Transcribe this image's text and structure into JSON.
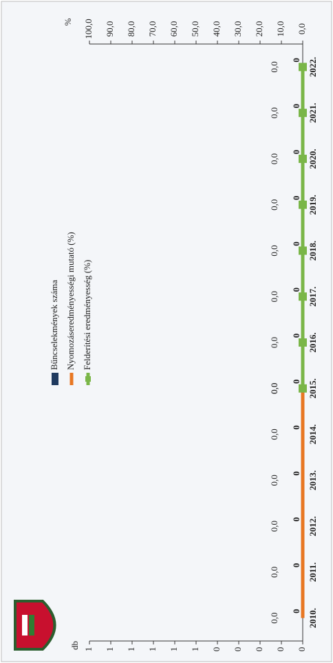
{
  "chart_data": {
    "type": "bar",
    "categories": [
      "2010.",
      "2011.",
      "2012.",
      "2013.",
      "2014.",
      "2015.",
      "2016.",
      "2017.",
      "2018.",
      "2019.",
      "2020.",
      "2021.",
      "2022."
    ],
    "series": [
      {
        "name": "Bűncselekmények száma",
        "type": "bar",
        "color": "#1f3a5f",
        "values": [
          0,
          0,
          0,
          0,
          0,
          0,
          0,
          0,
          0,
          0,
          0,
          0,
          0
        ]
      },
      {
        "name": "Nyomozáseredményességi mutató (%)",
        "type": "line",
        "axis": "y2",
        "color": "#e87722",
        "values": [
          0,
          0,
          0,
          0,
          0,
          0,
          null,
          null,
          null,
          null,
          null,
          null,
          null
        ],
        "value_labels": [
          "0,0",
          "0,0",
          "0,0",
          "0,0",
          "0,0",
          "0,0",
          null,
          null,
          null,
          null,
          null,
          null,
          null
        ]
      },
      {
        "name": "Felderítési eredményesség (%)",
        "type": "line",
        "axis": "y2",
        "color": "#7ab648",
        "values": [
          null,
          null,
          null,
          null,
          null,
          0,
          0,
          0,
          0,
          0,
          0,
          0,
          0
        ],
        "value_labels": [
          null,
          null,
          null,
          null,
          null,
          "0,0",
          "0,0",
          "0,0",
          "0,0",
          "0,0",
          "0,0",
          "0,0",
          "0,0"
        ]
      }
    ],
    "y_label": "db",
    "y2_label": "%",
    "ylim": [
      0,
      1
    ],
    "yticks": [
      {
        "value": 0,
        "label": "0"
      },
      {
        "value": 0.1,
        "label": "0"
      },
      {
        "value": 0.2,
        "label": "0"
      },
      {
        "value": 0.3,
        "label": "0"
      },
      {
        "value": 0.4,
        "label": "0"
      },
      {
        "value": 0.5,
        "label": "1"
      },
      {
        "value": 0.6,
        "label": "1"
      },
      {
        "value": 0.7,
        "label": "1"
      },
      {
        "value": 0.8,
        "label": "1"
      },
      {
        "value": 0.9,
        "label": "1"
      },
      {
        "value": 1,
        "label": "1"
      }
    ],
    "y2lim": [
      0,
      100
    ],
    "y2ticks": [
      {
        "value": 0,
        "label": "0,0"
      },
      {
        "value": 10,
        "label": "10,0"
      },
      {
        "value": 20,
        "label": "20,0"
      },
      {
        "value": 30,
        "label": "30,0"
      },
      {
        "value": 40,
        "label": "40,0"
      },
      {
        "value": 50,
        "label": "50,0"
      },
      {
        "value": 60,
        "label": "60,0"
      },
      {
        "value": 70,
        "label": "70,0"
      },
      {
        "value": 80,
        "label": "80,0"
      },
      {
        "value": 90,
        "label": "90,0"
      },
      {
        "value": 100,
        "label": "100,0"
      }
    ]
  }
}
